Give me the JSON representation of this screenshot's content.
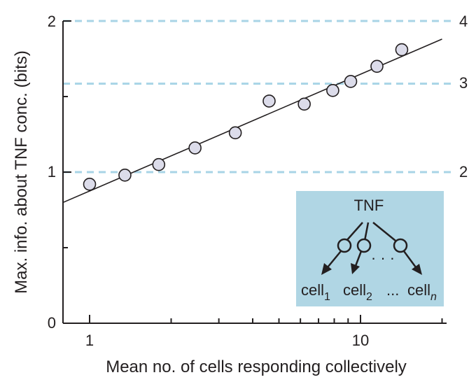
{
  "chart_data": {
    "type": "scatter",
    "title": "",
    "xlabel": "Mean no. of cells responding collectively",
    "ylabel": "Max. info. about TNF conc. (bits)",
    "x_scale": "log",
    "xlim": [
      0.8,
      20
    ],
    "ylim": [
      0,
      2
    ],
    "x_tick_labels": [
      "1",
      "10"
    ],
    "y_tick_labels": [
      "0",
      "1",
      "2"
    ],
    "points": [
      {
        "x": 1.0,
        "y": 0.92
      },
      {
        "x": 1.35,
        "y": 0.98
      },
      {
        "x": 1.8,
        "y": 1.05
      },
      {
        "x": 2.45,
        "y": 1.16
      },
      {
        "x": 3.45,
        "y": 1.26
      },
      {
        "x": 4.6,
        "y": 1.47
      },
      {
        "x": 6.2,
        "y": 1.45
      },
      {
        "x": 7.9,
        "y": 1.54
      },
      {
        "x": 9.2,
        "y": 1.6
      },
      {
        "x": 11.5,
        "y": 1.7
      },
      {
        "x": 14.2,
        "y": 1.81
      }
    ],
    "fit_line": {
      "x": [
        0.8,
        20
      ],
      "y": [
        0.8,
        1.88
      ]
    },
    "reference_lines": [
      {
        "y": 1.0,
        "label": "2"
      },
      {
        "y": 1.585,
        "label": "3"
      },
      {
        "y": 2.0,
        "label": "4"
      }
    ],
    "grid": false,
    "colors": {
      "marker_fill": "#dcdcea",
      "marker_stroke": "#231f20",
      "reference_line": "#a8d4e6",
      "inset_background": "#b0d6e4"
    }
  },
  "inset": {
    "top_label": "TNF",
    "cells": [
      {
        "name": "cell",
        "sub": "1"
      },
      {
        "name": "cell",
        "sub": "2"
      },
      {
        "name": "cell",
        "sub": "n"
      }
    ],
    "ellipsis_mid": "· · ·",
    "ellipsis_bottom": "..."
  }
}
